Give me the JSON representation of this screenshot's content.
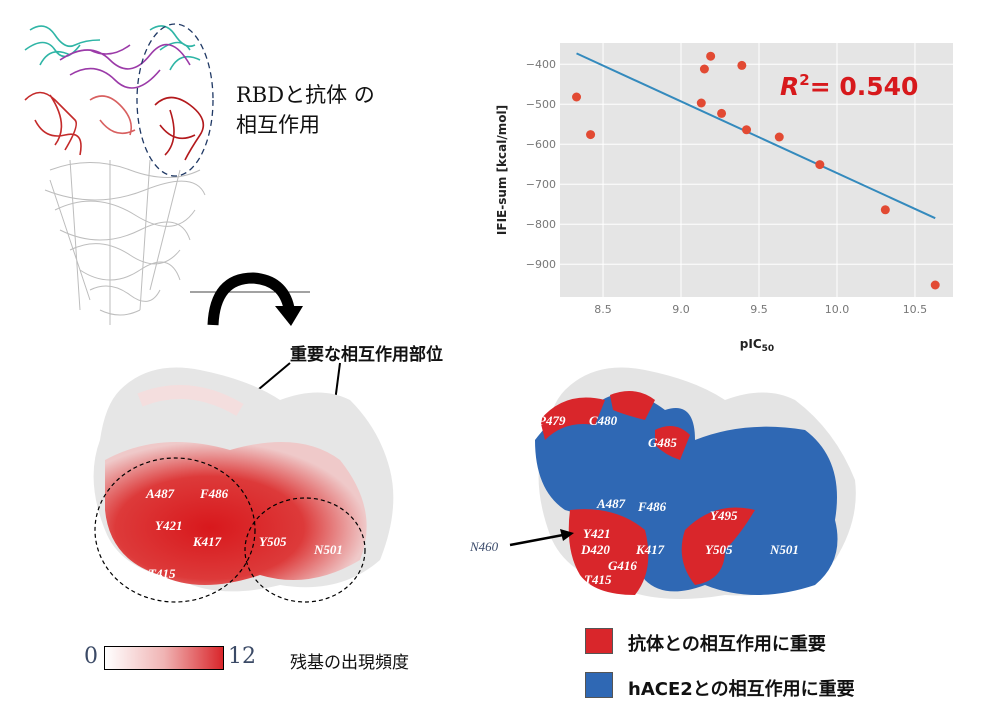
{
  "top_label": {
    "line1": "RBDと抗体 の",
    "line2": "相互作用"
  },
  "callout": "重要な相互作用部位",
  "left_residues": [
    "A487",
    "F486",
    "Y421",
    "K417",
    "Y505",
    "N501",
    "T415"
  ],
  "right_residues": [
    "P479",
    "C480",
    "G485",
    "A487",
    "F486",
    "Y495",
    "Y421",
    "K417",
    "Y505",
    "N501",
    "D420",
    "G416",
    "T415"
  ],
  "right_outside_residue": "N460",
  "colorbar": {
    "min": "0",
    "max": "12",
    "label": "残基の出現頻度"
  },
  "legend": [
    {
      "label": "抗体との相互作用に重要",
      "color": "#d9262b"
    },
    {
      "label": "hACE2との相互作用に重要",
      "color": "#2f68b4"
    }
  ],
  "chart_data": {
    "type": "scatter",
    "title": "",
    "xlabel": "pIC",
    "xlabel_sub": "50",
    "ylabel": "IFIE-sum [kcal/mol]",
    "annotation": {
      "text": "= 0.540",
      "r": "R",
      "sup": "2"
    },
    "xlim": [
      8.224,
      10.744
    ],
    "ylim": [
      -982,
      -347
    ],
    "xticks": [
      8.5,
      9.0,
      9.5,
      10.0,
      10.5
    ],
    "xtick_labels": [
      "8.5",
      "9.0",
      "9.5",
      "10.0",
      "10.5"
    ],
    "yticks": [
      -400,
      -500,
      -600,
      -700,
      -800,
      -900
    ],
    "ytick_labels": [
      "−400",
      "−500",
      "−600",
      "−700",
      "−800",
      "−900"
    ],
    "grid": true,
    "points": [
      [
        8.33,
        -482
      ],
      [
        8.42,
        -576
      ],
      [
        9.13,
        -497
      ],
      [
        9.15,
        -412
      ],
      [
        9.19,
        -380
      ],
      [
        9.26,
        -523
      ],
      [
        9.39,
        -403
      ],
      [
        9.42,
        -564
      ],
      [
        9.63,
        -582
      ],
      [
        9.89,
        -651
      ],
      [
        10.31,
        -764
      ],
      [
        10.63,
        -952
      ]
    ],
    "fit_line": [
      [
        8.33,
        -373
      ],
      [
        10.63,
        -785
      ]
    ],
    "colors": {
      "point": "#e24a33",
      "line": "#348abd",
      "bg": "#e5e5e5",
      "annotation": "#d7191c"
    }
  }
}
